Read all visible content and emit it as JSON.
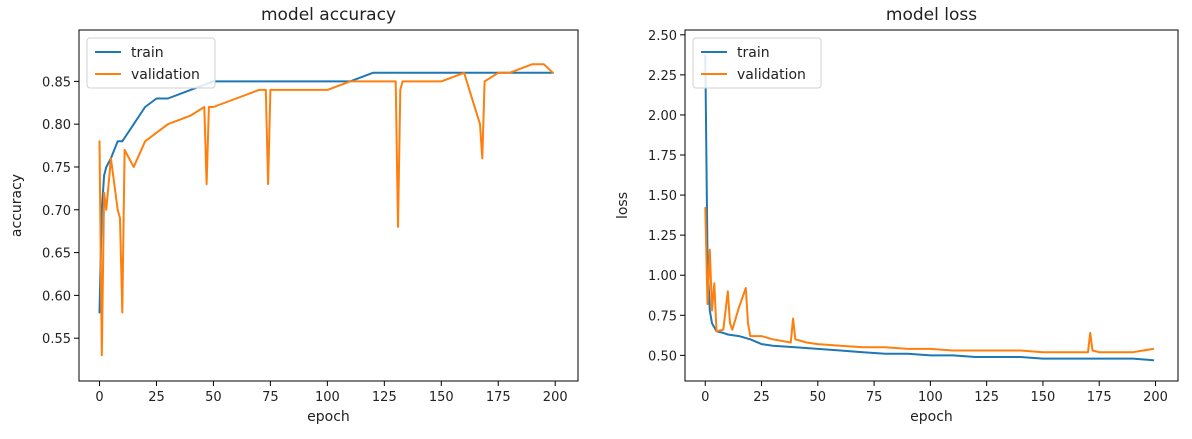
{
  "chart_data": [
    {
      "type": "line",
      "title": "model accuracy",
      "xlabel": "epoch",
      "ylabel": "accuracy",
      "xlim": [
        -9,
        210
      ],
      "ylim": [
        0.5,
        0.91
      ],
      "xticks": [
        0,
        25,
        50,
        75,
        100,
        125,
        150,
        175,
        200
      ],
      "yticks": [
        0.55,
        0.6,
        0.65,
        0.7,
        0.75,
        0.8,
        0.85
      ],
      "ytick_labels": [
        "0.55",
        "0.60",
        "0.65",
        "0.70",
        "0.75",
        "0.80",
        "0.85"
      ],
      "legend": "upper left",
      "grid": false,
      "series": [
        {
          "name": "train",
          "color": "#1f77b4",
          "x": [
            0,
            1,
            2,
            3,
            5,
            8,
            10,
            15,
            20,
            25,
            30,
            40,
            50,
            60,
            70,
            80,
            90,
            100,
            110,
            120,
            130,
            140,
            150,
            160,
            170,
            180,
            190,
            195,
            199
          ],
          "y": [
            0.58,
            0.7,
            0.74,
            0.75,
            0.76,
            0.78,
            0.78,
            0.8,
            0.82,
            0.83,
            0.83,
            0.84,
            0.85,
            0.85,
            0.85,
            0.85,
            0.85,
            0.85,
            0.85,
            0.86,
            0.86,
            0.86,
            0.86,
            0.86,
            0.86,
            0.86,
            0.86,
            0.86,
            0.86
          ]
        },
        {
          "name": "validation",
          "color": "#ff7f0e",
          "x": [
            0,
            1,
            2,
            3,
            5,
            8,
            9,
            10,
            11,
            15,
            20,
            25,
            30,
            40,
            46,
            47,
            48,
            50,
            60,
            70,
            73,
            74,
            75,
            80,
            90,
            100,
            110,
            120,
            130,
            131,
            132,
            133,
            140,
            150,
            160,
            167,
            168,
            169,
            175,
            180,
            190,
            195,
            199
          ],
          "y": [
            0.78,
            0.53,
            0.72,
            0.7,
            0.76,
            0.7,
            0.69,
            0.58,
            0.77,
            0.75,
            0.78,
            0.79,
            0.8,
            0.81,
            0.82,
            0.73,
            0.82,
            0.82,
            0.83,
            0.84,
            0.84,
            0.73,
            0.84,
            0.84,
            0.84,
            0.84,
            0.85,
            0.85,
            0.85,
            0.68,
            0.84,
            0.85,
            0.85,
            0.85,
            0.86,
            0.8,
            0.76,
            0.85,
            0.86,
            0.86,
            0.87,
            0.87,
            0.86
          ]
        }
      ]
    },
    {
      "type": "line",
      "title": "model loss",
      "xlabel": "epoch",
      "ylabel": "loss",
      "xlim": [
        -9,
        210
      ],
      "ylim": [
        0.34,
        2.53
      ],
      "xticks": [
        0,
        25,
        50,
        75,
        100,
        125,
        150,
        175,
        200
      ],
      "yticks": [
        0.5,
        0.75,
        1.0,
        1.25,
        1.5,
        1.75,
        2.0,
        2.25,
        2.5
      ],
      "ytick_labels": [
        "0.50",
        "0.75",
        "1.00",
        "1.25",
        "1.50",
        "1.75",
        "2.00",
        "2.25",
        "2.50"
      ],
      "legend": "upper left",
      "grid": false,
      "series": [
        {
          "name": "train",
          "color": "#1f77b4",
          "x": [
            0,
            1,
            2,
            3,
            5,
            8,
            10,
            15,
            20,
            25,
            30,
            40,
            50,
            60,
            70,
            80,
            90,
            100,
            110,
            120,
            130,
            140,
            150,
            160,
            170,
            180,
            190,
            199
          ],
          "y": [
            2.37,
            1.1,
            0.78,
            0.7,
            0.65,
            0.64,
            0.63,
            0.62,
            0.6,
            0.57,
            0.56,
            0.55,
            0.54,
            0.53,
            0.52,
            0.51,
            0.51,
            0.5,
            0.5,
            0.49,
            0.49,
            0.49,
            0.48,
            0.48,
            0.48,
            0.48,
            0.48,
            0.47
          ]
        },
        {
          "name": "validation",
          "color": "#ff7f0e",
          "x": [
            0,
            1,
            2,
            3,
            4,
            5,
            8,
            10,
            11,
            12,
            15,
            18,
            19,
            20,
            25,
            30,
            38,
            39,
            40,
            45,
            50,
            60,
            70,
            80,
            90,
            100,
            110,
            120,
            130,
            140,
            150,
            160,
            170,
            171,
            172,
            175,
            180,
            190,
            199
          ],
          "y": [
            1.42,
            0.82,
            1.16,
            0.78,
            0.95,
            0.65,
            0.66,
            0.9,
            0.7,
            0.66,
            0.8,
            0.92,
            0.7,
            0.62,
            0.62,
            0.6,
            0.58,
            0.73,
            0.6,
            0.58,
            0.57,
            0.56,
            0.55,
            0.55,
            0.54,
            0.54,
            0.53,
            0.53,
            0.53,
            0.53,
            0.52,
            0.52,
            0.52,
            0.64,
            0.53,
            0.52,
            0.52,
            0.52,
            0.54
          ]
        }
      ]
    }
  ]
}
